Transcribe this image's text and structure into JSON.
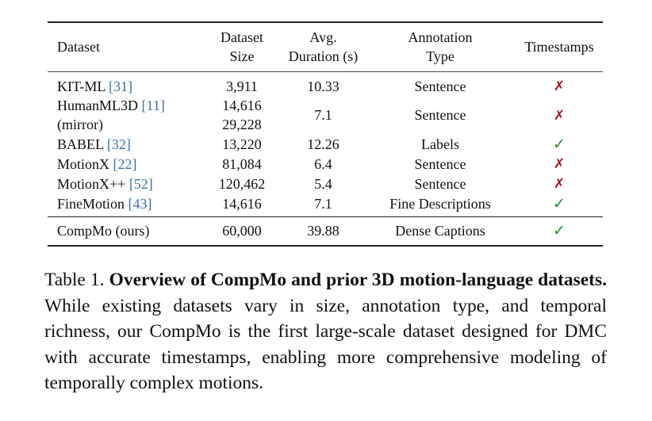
{
  "table": {
    "headers": {
      "dataset": "Dataset",
      "size_line1": "Dataset",
      "size_line2": "Size",
      "duration_line1": "Avg.",
      "duration_line2": "Duration (s)",
      "type_line1": "Annotation",
      "type_line2": "Type",
      "timestamps": "Timestamps"
    },
    "rows": [
      {
        "name": "KIT-ML ",
        "cite": "[31]",
        "size": "3,911",
        "duration": "10.33",
        "type": "Sentence",
        "timestamps": "✗",
        "has_timestamps": false
      },
      {
        "name": "HumanML3D ",
        "cite": "[11]",
        "name_line2": "(mirror)",
        "size": "14,616",
        "size_line2": "29,228",
        "duration": "7.1",
        "type": "Sentence",
        "timestamps": "✗",
        "has_timestamps": false
      },
      {
        "name": "BABEL ",
        "cite": "[32]",
        "size": "13,220",
        "duration": "12.26",
        "type": "Labels",
        "timestamps": "✓",
        "has_timestamps": true
      },
      {
        "name": "MotionX ",
        "cite": "[22]",
        "size": "81,084",
        "duration": "6.4",
        "type": "Sentence",
        "timestamps": "✗",
        "has_timestamps": false
      },
      {
        "name": "MotionX++ ",
        "cite": "[52]",
        "size": "120,462",
        "duration": "5.4",
        "type": "Sentence",
        "timestamps": "✗",
        "has_timestamps": false
      },
      {
        "name": "FineMotion ",
        "cite": "[43]",
        "size": "14,616",
        "duration": "7.1",
        "type": "Fine Descriptions",
        "timestamps": "✓",
        "has_timestamps": true
      }
    ],
    "ours": {
      "name": "CompMo (ours)",
      "size": "60,000",
      "duration": "39.88",
      "type": "Dense Captions",
      "timestamps": "✓",
      "has_timestamps": true
    }
  },
  "caption": {
    "label": "Table 1. ",
    "bold": "Overview of CompMo and prior 3D motion-language datasets.",
    "body": "  While existing datasets vary in size, annotation type, and temporal richness, our CompMo is the first large-scale dataset designed for DMC with accurate timestamps, enabling more comprehensive modeling of temporally complex motions."
  },
  "colors": {
    "citation": "#3f6fa6",
    "cross_mark": "#a3141c",
    "check_mark": "#1f8f2a"
  }
}
